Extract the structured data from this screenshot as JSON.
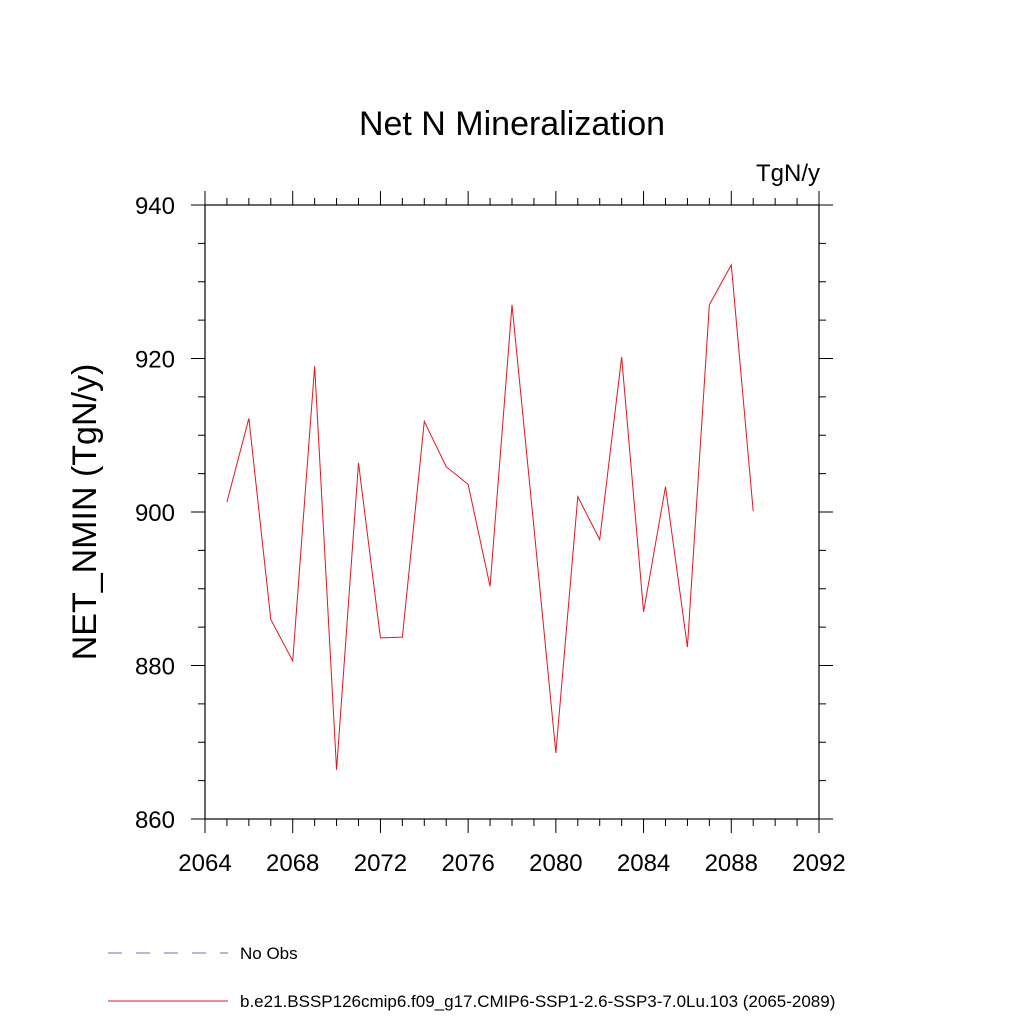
{
  "chart_data": {
    "type": "line",
    "title": "Net N Mineralization",
    "units": "TgN/y",
    "ylabel": "NET_NMIN  (TgN/y)",
    "xlabel": "",
    "xlim": [
      2064,
      2092
    ],
    "ylim": [
      860,
      940
    ],
    "x_ticks": [
      2064,
      2068,
      2072,
      2076,
      2080,
      2084,
      2088,
      2092
    ],
    "y_ticks": [
      860,
      880,
      900,
      920,
      940
    ],
    "x_minor_step": 1,
    "y_minor_step": 5,
    "series": [
      {
        "name": "b.e21.BSSP126cmip6.f09_g17.CMIP6-SSP1-2.6-SSP3-7.0Lu.103 (2065-2089)",
        "color": "#e8141e",
        "dash": "solid",
        "x": [
          2065,
          2066,
          2067,
          2068,
          2069,
          2070,
          2071,
          2072,
          2073,
          2074,
          2075,
          2076,
          2077,
          2078,
          2079,
          2080,
          2081,
          2082,
          2083,
          2084,
          2085,
          2086,
          2087,
          2088,
          2089
        ],
        "values": [
          901.3,
          912.2,
          886.0,
          880.6,
          919.0,
          866.4,
          906.4,
          883.6,
          883.7,
          911.8,
          905.9,
          903.6,
          890.3,
          927.0,
          898.0,
          868.6,
          902.0,
          896.4,
          920.2,
          887.0,
          903.3,
          882.4,
          927.0,
          932.2,
          900.1
        ]
      }
    ],
    "legend": [
      {
        "label": "No Obs",
        "color": "#7a6fb5",
        "dash": "dashed"
      },
      {
        "label": "b.e21.BSSP126cmip6.f09_g17.CMIP6-SSP1-2.6-SSP3-7.0Lu.103 (2065-2089)",
        "color": "#e8141e",
        "dash": "solid"
      }
    ]
  }
}
